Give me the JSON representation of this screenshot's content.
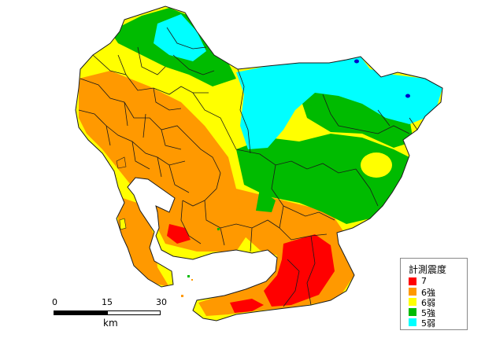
{
  "legend": {
    "title": "計測震度",
    "items": [
      {
        "label": "7",
        "color": "#ff0000"
      },
      {
        "label": "6強",
        "color": "#ff9900"
      },
      {
        "label": "6弱",
        "color": "#ffff00"
      },
      {
        "label": "5強",
        "color": "#00bb00"
      },
      {
        "label": "5弱",
        "color": "#00ffff"
      }
    ]
  },
  "scale": {
    "ticks": [
      "0",
      "15",
      "30"
    ],
    "unit": "km"
  },
  "colors": {
    "intensity_7": "#ff0000",
    "intensity_6_upper": "#ff9900",
    "intensity_6_lower": "#ffff00",
    "intensity_5_upper": "#00bb00",
    "intensity_5_lower": "#00ffff",
    "water": "#0000cc",
    "boundary": "#1a1a1a"
  }
}
